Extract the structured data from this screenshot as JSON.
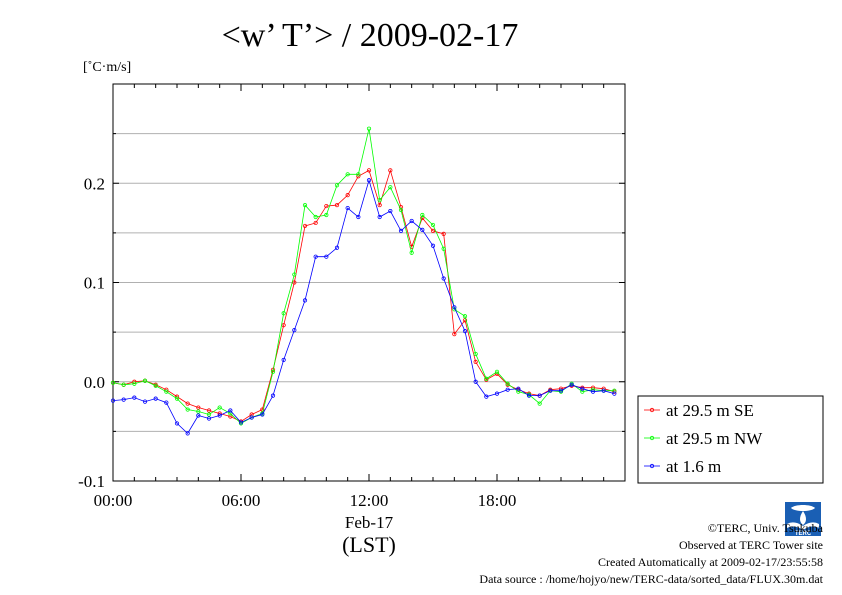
{
  "chart_data": {
    "type": "line",
    "title": "<w’ T’> / 2009-02-17",
    "ylabel": "[˚C·m/s]",
    "xlabel": "(LST)",
    "date_label": "Feb-17",
    "xlim": [
      0,
      24
    ],
    "ylim": [
      -0.1,
      0.3
    ],
    "grid": true,
    "legend_position": "right-bottom",
    "x_ticks": [
      {
        "value": 0,
        "label": "00:00"
      },
      {
        "value": 6,
        "label": "06:00"
      },
      {
        "value": 12,
        "label": "12:00"
      },
      {
        "value": 18,
        "label": "18:00"
      }
    ],
    "y_ticks": [
      {
        "value": -0.1,
        "label": "-0.1"
      },
      {
        "value": 0.0,
        "label": "0.0"
      },
      {
        "value": 0.1,
        "label": "0.1"
      },
      {
        "value": 0.2,
        "label": "0.2"
      }
    ],
    "x": [
      0.0,
      0.5,
      1.0,
      1.5,
      2.0,
      2.5,
      3.0,
      3.5,
      4.0,
      4.5,
      5.0,
      5.5,
      6.0,
      6.5,
      7.0,
      7.5,
      8.0,
      8.5,
      9.0,
      9.5,
      10.0,
      10.5,
      11.0,
      11.5,
      12.0,
      12.5,
      13.0,
      13.5,
      14.0,
      14.5,
      15.0,
      15.5,
      16.0,
      16.5,
      17.0,
      17.5,
      18.0,
      18.5,
      19.0,
      19.5,
      20.0,
      20.5,
      21.0,
      21.5,
      22.0,
      22.5,
      23.0,
      23.5
    ],
    "series": [
      {
        "name": "at 29.5 m SE",
        "color": "#ff0000",
        "values": [
          -0.001,
          -0.003,
          0.0,
          0.001,
          -0.003,
          -0.008,
          -0.015,
          -0.022,
          -0.026,
          -0.029,
          -0.032,
          -0.035,
          -0.04,
          -0.033,
          -0.028,
          0.012,
          0.057,
          0.1,
          0.157,
          0.16,
          0.177,
          0.178,
          0.188,
          0.207,
          0.213,
          0.178,
          0.213,
          0.176,
          0.136,
          0.165,
          0.152,
          0.149,
          0.048,
          0.062,
          0.02,
          0.002,
          0.008,
          -0.003,
          -0.008,
          -0.012,
          -0.014,
          -0.008,
          -0.007,
          -0.004,
          -0.006,
          -0.006,
          -0.007,
          -0.01
        ]
      },
      {
        "name": "at 29.5 m NW",
        "color": "#00ff00",
        "values": [
          -0.001,
          -0.003,
          -0.002,
          0.001,
          -0.004,
          -0.01,
          -0.017,
          -0.028,
          -0.03,
          -0.033,
          -0.026,
          -0.032,
          -0.042,
          -0.036,
          -0.032,
          0.01,
          0.069,
          0.108,
          0.178,
          0.166,
          0.168,
          0.198,
          0.209,
          0.209,
          0.255,
          0.183,
          0.196,
          0.173,
          0.13,
          0.168,
          0.158,
          0.134,
          0.073,
          0.066,
          0.028,
          0.003,
          0.01,
          -0.002,
          -0.01,
          -0.013,
          -0.022,
          -0.009,
          -0.01,
          -0.002,
          -0.01,
          -0.008,
          -0.009,
          -0.009
        ]
      },
      {
        "name": "at 1.6 m",
        "color": "#0000ff",
        "values": [
          -0.019,
          -0.018,
          -0.016,
          -0.02,
          -0.017,
          -0.021,
          -0.042,
          -0.052,
          -0.034,
          -0.037,
          -0.034,
          -0.029,
          -0.041,
          -0.036,
          -0.033,
          -0.014,
          0.022,
          0.052,
          0.082,
          0.126,
          0.126,
          0.135,
          0.175,
          0.166,
          0.203,
          0.166,
          0.172,
          0.152,
          0.162,
          0.153,
          0.137,
          0.104,
          0.075,
          0.051,
          0.0,
          -0.015,
          -0.012,
          -0.008,
          -0.007,
          -0.014,
          -0.014,
          -0.009,
          -0.009,
          -0.003,
          -0.007,
          -0.01,
          -0.009,
          -0.012
        ]
      }
    ]
  },
  "credits": {
    "copyright": "©TERC, Univ. Tsukuba",
    "observed": "Observed at TERC Tower site",
    "created": "Created Automatically at 2009-02-17/23:55:58",
    "source": "Data source : /home/hojyo/new/TERC-data/sorted_data/FLUX.30m.dat"
  },
  "logo": {
    "text": "TERC",
    "color": "#1a5fb4"
  }
}
